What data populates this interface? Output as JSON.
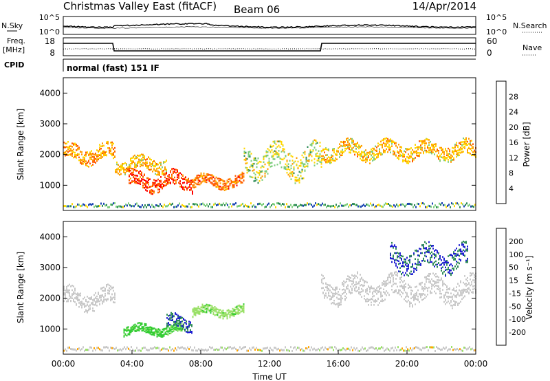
{
  "header": {
    "title": "Christmas Valley East (fitACF)",
    "beam": "Beam 06",
    "date": "14/Apr/2014"
  },
  "status_panel": {
    "nsky_label": "N.Sky",
    "nsky_ticks": [
      "10^5",
      "10^0"
    ],
    "nsearch_label": "N.Search",
    "nsearch_ticks": [
      "10^5",
      "10^0"
    ],
    "freq_label": "Freq.",
    "freq_unit": "[MHz]",
    "freq_ticks": [
      "18",
      "8"
    ],
    "nave_label": "Nave",
    "nave_ticks": [
      "60",
      "0"
    ],
    "cpid_label": "CPID",
    "cpid_value": "normal (fast) 151 IF"
  },
  "chart_data": [
    {
      "type": "heatmap",
      "name": "power",
      "xlabel": "",
      "ylabel": "Slant Range [km]",
      "xlim": [
        0,
        24
      ],
      "ylim": [
        180,
        4500
      ],
      "yticks": [
        "1000",
        "2000",
        "3000",
        "4000"
      ],
      "colorbar_label": "Power [dB]",
      "colorbar_ticks": [
        "4",
        "8",
        "12",
        "16",
        "20",
        "24",
        "28"
      ],
      "colorbar_colors": [
        "#0000ff",
        "#1c46b4",
        "#2e8b57",
        "#7ccd7c",
        "#ffd700",
        "#ff9c00",
        "#ff5a00",
        "#ff0000"
      ],
      "bands": [
        {
          "t": [
            0,
            3
          ],
          "range": [
            1700,
            2400
          ],
          "level": 22
        },
        {
          "t": [
            3,
            6
          ],
          "range": [
            1400,
            2000
          ],
          "level": 20
        },
        {
          "t": [
            3.8,
            7.5
          ],
          "range": [
            800,
            1500
          ],
          "level": 27
        },
        {
          "t": [
            7.5,
            10.5
          ],
          "range": [
            900,
            1400
          ],
          "level": 24
        },
        {
          "t": [
            10.5,
            15
          ],
          "range": [
            1200,
            2400
          ],
          "level": 16
        },
        {
          "t": [
            15,
            24
          ],
          "range": [
            1800,
            2500
          ],
          "level": 20
        }
      ]
    },
    {
      "type": "heatmap",
      "name": "velocity",
      "xlabel": "Time UT",
      "ylabel": "Slant Range [km]",
      "xlim": [
        0,
        24
      ],
      "ylim": [
        180,
        4500
      ],
      "xticks": [
        "00:00",
        "04:00",
        "08:00",
        "12:00",
        "16:00",
        "20:00",
        "00:00"
      ],
      "yticks": [
        "1000",
        "2000",
        "3000",
        "4000"
      ],
      "colorbar_label": "Velocity [m s⁻¹]",
      "colorbar_ticks": [
        "200",
        "100",
        "50",
        "15",
        "-15",
        "-50",
        "-100",
        "-200"
      ],
      "colorbar_colors": [
        "#1e1ed2",
        "#2e8b57",
        "#33cc33",
        "#99e066",
        "#c8c8c8",
        "#ffa500",
        "#ff7800",
        "#ff3c00",
        "#ff0000"
      ],
      "bands": [
        {
          "t": [
            0,
            3
          ],
          "range": [
            1600,
            2400
          ],
          "level": 0
        },
        {
          "t": [
            3.5,
            7
          ],
          "range": [
            800,
            1200
          ],
          "level": 60
        },
        {
          "t": [
            6,
            7.5
          ],
          "range": [
            900,
            1500
          ],
          "level": 200
        },
        {
          "t": [
            7.5,
            10.5
          ],
          "range": [
            1400,
            1800
          ],
          "level": 40
        },
        {
          "t": [
            15,
            24
          ],
          "range": [
            1800,
            2800
          ],
          "level": 0
        },
        {
          "t": [
            19,
            23.5
          ],
          "range": [
            2800,
            3800
          ],
          "level": 200
        }
      ]
    }
  ]
}
